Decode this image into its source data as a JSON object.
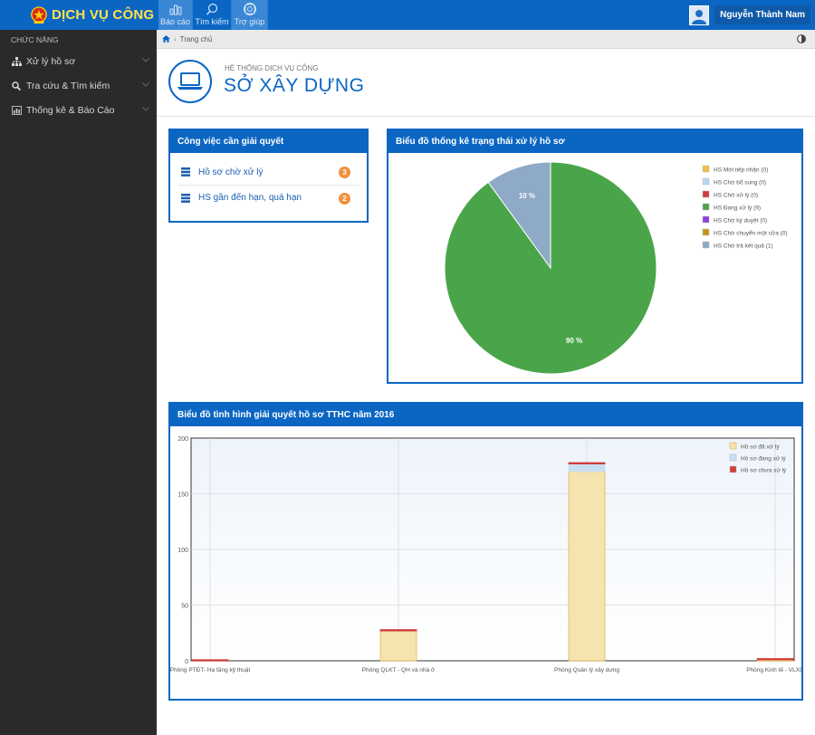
{
  "header": {
    "brand": "DỊCH VỤ CÔNG",
    "nav": [
      {
        "label": "Báo cáo"
      },
      {
        "label": "Tìm kiếm"
      },
      {
        "label": "Trợ giúp"
      }
    ],
    "user_name": "Nguyễn Thành Nam"
  },
  "sidebar": {
    "title": "CHỨC NĂNG",
    "items": [
      {
        "label": "Xử lý hồ sơ",
        "icon": "sitemap-icon"
      },
      {
        "label": "Tra cứu & Tìm kiếm",
        "icon": "search-icon"
      },
      {
        "label": "Thống kê & Báo Cáo",
        "icon": "bar-chart-icon"
      }
    ]
  },
  "breadcrumb": {
    "home": "Trang chủ"
  },
  "page": {
    "subtitle": "HỆ THỐNG DỊCH VỤ CÔNG",
    "title": "SỞ XÂY DỰNG"
  },
  "tasks": {
    "title": "Công việc cần giải quyết",
    "items": [
      {
        "label": "Hồ sơ chờ xử lý",
        "count": "3"
      },
      {
        "label": "HS gần đến hạn, quá hạn",
        "count": "2"
      }
    ]
  },
  "colors": {
    "primary": "#0b66c3",
    "badge": "#f0923e",
    "sidebar": "#2a2a2a"
  },
  "chart_data": [
    {
      "type": "pie",
      "title": "Biểu đồ thống kê trạng thái xử lý hồ sơ",
      "slices": [
        {
          "name": "HS Mới tiếp nhận (0)",
          "value": 0,
          "color": "#f0c040"
        },
        {
          "name": "HS Chờ bổ sung (0)",
          "value": 0,
          "color": "#b8d8f2"
        },
        {
          "name": "HS Chờ xử lý (0)",
          "value": 0,
          "color": "#cf3b3b"
        },
        {
          "name": "HS Đang xử lý (9)",
          "value": 9,
          "color": "#4aa54a",
          "label": "90 %"
        },
        {
          "name": "HS Chờ ký duyệt (0)",
          "value": 0,
          "color": "#8a3fe0"
        },
        {
          "name": "HS Chờ chuyển một cửa (0)",
          "value": 0,
          "color": "#c0961e"
        },
        {
          "name": "HS Chờ trả kết quả (1)",
          "value": 1,
          "color": "#8eaac6",
          "label": "10 %"
        }
      ],
      "legend": "top-right"
    },
    {
      "type": "bar",
      "stacked": true,
      "title": "Biểu đồ tình hình giải quyết hồ sơ TTHC năm  2016",
      "categories": [
        "Phòng PTĐT- Hạ tầng kỹ thuật",
        "Phòng QLKT - QH và nhà ở",
        "Phòng Quản lý xây dựng",
        "Phòng Kinh tế - VLXD"
      ],
      "series": [
        {
          "name": "Hồ sơ đã xử lý",
          "values": [
            0,
            27,
            170,
            1
          ],
          "color": "#f5e3b0"
        },
        {
          "name": "Hồ sơ đang xử lý",
          "values": [
            0,
            0,
            7,
            0
          ],
          "color": "#c8def2"
        },
        {
          "name": "Hồ sơ chưa xử lý",
          "values": [
            1,
            1,
            1,
            1
          ],
          "color": "#cf3b3b"
        }
      ],
      "yticks": [
        "0",
        "50",
        "100",
        "150",
        "200"
      ],
      "ylim": [
        0,
        200
      ],
      "grid": true,
      "legend": "top-right"
    }
  ]
}
